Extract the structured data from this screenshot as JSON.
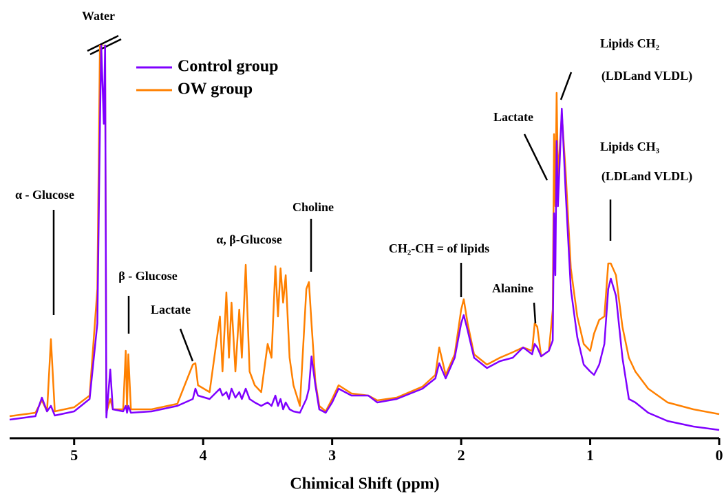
{
  "chart_data": {
    "type": "line",
    "x_label": "Chimical Shift (ppm)",
    "xlim": [
      5.5,
      0
    ],
    "xticks": [
      5,
      4,
      3,
      2,
      1,
      0
    ],
    "ylim": [
      0,
      572
    ],
    "legend": "upper-left",
    "x": [
      5.5,
      5.3,
      5.25,
      5.21,
      5.18,
      5.15,
      5.0,
      4.88,
      4.82,
      4.8,
      4.79,
      4.77,
      4.76,
      4.75,
      4.72,
      4.7,
      4.62,
      4.6,
      4.59,
      4.58,
      4.56,
      4.4,
      4.2,
      4.08,
      4.06,
      4.04,
      3.95,
      3.87,
      3.85,
      3.82,
      3.8,
      3.78,
      3.75,
      3.72,
      3.7,
      3.67,
      3.64,
      3.6,
      3.55,
      3.5,
      3.47,
      3.44,
      3.42,
      3.4,
      3.38,
      3.36,
      3.33,
      3.3,
      3.25,
      3.2,
      3.18,
      3.16,
      3.13,
      3.1,
      3.05,
      3.0,
      2.95,
      2.85,
      2.72,
      2.65,
      2.5,
      2.3,
      2.2,
      2.17,
      2.12,
      2.05,
      2.0,
      1.98,
      1.95,
      1.9,
      1.8,
      1.7,
      1.6,
      1.52,
      1.45,
      1.43,
      1.41,
      1.38,
      1.32,
      1.29,
      1.28,
      1.27,
      1.26,
      1.25,
      1.22,
      1.19,
      1.15,
      1.1,
      1.05,
      1.0,
      0.97,
      0.93,
      0.89,
      0.86,
      0.84,
      0.8,
      0.75,
      0.7,
      0.65,
      0.55,
      0.4,
      0.2,
      0.0
    ],
    "series": [
      {
        "name": "Control group",
        "color": "#7f00ff",
        "values": [
          27,
          32,
          59,
          39,
          47,
          33,
          39,
          57,
          167,
          452,
          572,
          457,
          572,
          30,
          100,
          42,
          39,
          47,
          37,
          47,
          37,
          39,
          47,
          57,
          72,
          62,
          57,
          72,
          62,
          67,
          57,
          72,
          59,
          67,
          57,
          72,
          57,
          52,
          47,
          52,
          47,
          62,
          47,
          57,
          42,
          52,
          42,
          39,
          37,
          57,
          72,
          119,
          77,
          42,
          37,
          52,
          72,
          62,
          62,
          52,
          57,
          72,
          87,
          109,
          87,
          117,
          167,
          179,
          157,
          117,
          102,
          112,
          117,
          132,
          122,
          137,
          132,
          119,
          127,
          142,
          327,
          237,
          432,
          337,
          479,
          357,
          217,
          147,
          107,
          97,
          92,
          107,
          137,
          217,
          232,
          207,
          117,
          57,
          52,
          37,
          25,
          17,
          12
        ]
      },
      {
        "name": "OW group",
        "color": "#ff8000",
        "values": [
          32,
          37,
          55,
          39,
          144,
          39,
          45,
          62,
          217,
          572,
          572,
          572,
          572,
          37,
          57,
          42,
          42,
          127,
          42,
          122,
          42,
          42,
          50,
          107,
          109,
          77,
          67,
          177,
          97,
          212,
          117,
          197,
          97,
          187,
          117,
          252,
          97,
          77,
          67,
          137,
          117,
          250,
          177,
          247,
          197,
          237,
          117,
          77,
          47,
          217,
          227,
          167,
          82,
          47,
          39,
          57,
          77,
          65,
          62,
          55,
          59,
          75,
          92,
          132,
          92,
          122,
          187,
          202,
          167,
          122,
          107,
          117,
          125,
          132,
          127,
          167,
          162,
          119,
          127,
          187,
          442,
          337,
          502,
          377,
          472,
          387,
          247,
          177,
          137,
          127,
          152,
          172,
          177,
          254,
          254,
          237,
          162,
          117,
          97,
          72,
          52,
          42,
          35
        ]
      }
    ],
    "annotations": [
      "Water",
      "α - Glucose",
      "β - Glucose",
      "Lactate",
      "α, β-Glucose",
      "Choline",
      "CH₂-CH = of lipids",
      "Alanine",
      "Lactate",
      "Lipids CH₂",
      "(LDLand VLDL)",
      "Lipids CH₃",
      "(LDLand VLDL)"
    ]
  }
}
